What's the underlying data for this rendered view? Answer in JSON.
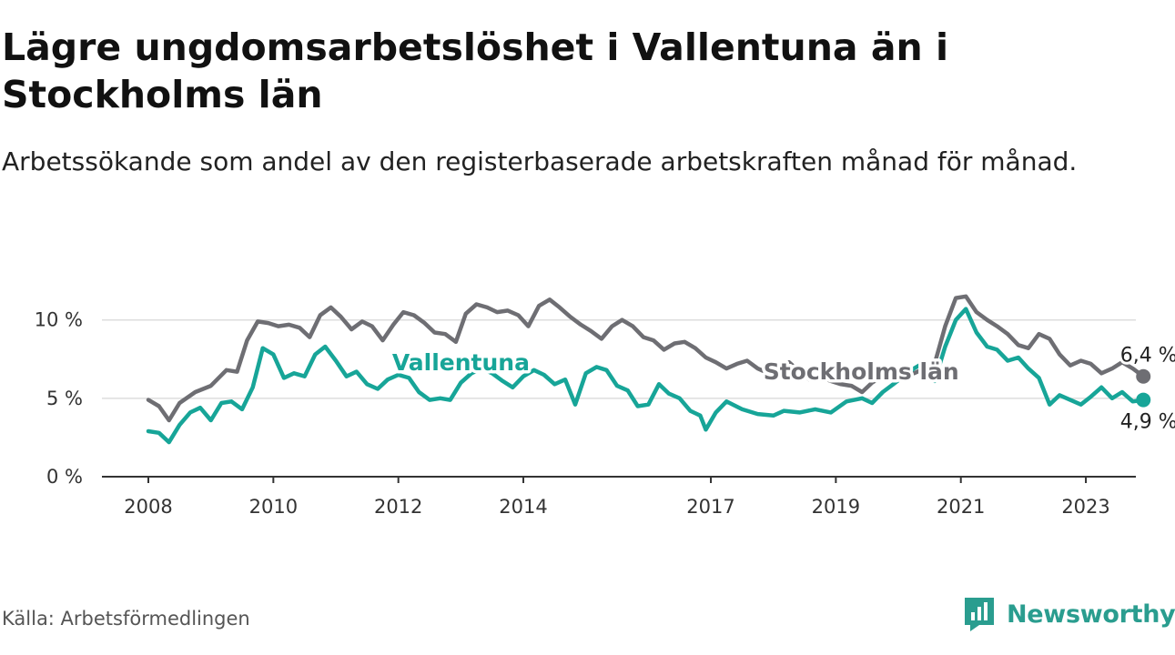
{
  "title": "Lägre ungdomsarbetslöshet i Vallentuna än i Stockholms län",
  "subtitle": "Arbetssökande som andel av den registerbaserade arbetskraften månad för månad.",
  "source": "Källa: Arbetsförmedlingen",
  "brand": "Newsworthy",
  "colors": {
    "vallentuna": "#17a598",
    "stockholm": "#6e6e73",
    "axis": "#333333",
    "grid": "#dddddd",
    "brand": "#2a9d8f"
  },
  "chart_data": {
    "type": "line",
    "title": "Lägre ungdomsarbetslöshet i Vallentuna än i Stockholms län",
    "xlabel": "",
    "ylabel": "",
    "xlim": [
      2007.92,
      2024.0
    ],
    "ylim": [
      0,
      13
    ],
    "x_ticks": [
      2008,
      2010,
      2012,
      2014,
      2017,
      2019,
      2021,
      2023
    ],
    "x_tick_labels": [
      "2008",
      "2010",
      "2012",
      "2014",
      "2017",
      "2019",
      "2021",
      "2023"
    ],
    "y_ticks": [
      0,
      5,
      10
    ],
    "y_tick_labels": [
      "0 %",
      "5 %",
      "10 %"
    ],
    "grid": true,
    "series": [
      {
        "name": "Stockholms län",
        "label": "Stockholms län",
        "color": "#6e6e73",
        "end_label": "6,4 %",
        "points": [
          [
            2008.0,
            4.9
          ],
          [
            2008.17,
            4.5
          ],
          [
            2008.33,
            3.6
          ],
          [
            2008.5,
            4.7
          ],
          [
            2008.75,
            5.4
          ],
          [
            2009.0,
            5.8
          ],
          [
            2009.25,
            6.8
          ],
          [
            2009.42,
            6.7
          ],
          [
            2009.58,
            8.7
          ],
          [
            2009.75,
            9.9
          ],
          [
            2009.92,
            9.8
          ],
          [
            2010.08,
            9.6
          ],
          [
            2010.25,
            9.7
          ],
          [
            2010.42,
            9.5
          ],
          [
            2010.58,
            8.9
          ],
          [
            2010.75,
            10.3
          ],
          [
            2010.92,
            10.8
          ],
          [
            2011.08,
            10.2
          ],
          [
            2011.25,
            9.4
          ],
          [
            2011.42,
            9.9
          ],
          [
            2011.58,
            9.6
          ],
          [
            2011.75,
            8.7
          ],
          [
            2011.92,
            9.7
          ],
          [
            2012.08,
            10.5
          ],
          [
            2012.25,
            10.3
          ],
          [
            2012.42,
            9.8
          ],
          [
            2012.58,
            9.2
          ],
          [
            2012.75,
            9.1
          ],
          [
            2012.92,
            8.6
          ],
          [
            2013.08,
            10.4
          ],
          [
            2013.25,
            11.0
          ],
          [
            2013.42,
            10.8
          ],
          [
            2013.58,
            10.5
          ],
          [
            2013.75,
            10.6
          ],
          [
            2013.92,
            10.3
          ],
          [
            2014.08,
            9.6
          ],
          [
            2014.25,
            10.9
          ],
          [
            2014.42,
            11.3
          ],
          [
            2014.58,
            10.8
          ],
          [
            2014.75,
            10.2
          ],
          [
            2014.92,
            9.7
          ],
          [
            2015.08,
            9.3
          ],
          [
            2015.25,
            8.8
          ],
          [
            2015.42,
            9.6
          ],
          [
            2015.58,
            10.0
          ],
          [
            2015.75,
            9.6
          ],
          [
            2015.92,
            8.9
          ],
          [
            2016.08,
            8.7
          ],
          [
            2016.25,
            8.1
          ],
          [
            2016.42,
            8.5
          ],
          [
            2016.58,
            8.6
          ],
          [
            2016.75,
            8.2
          ],
          [
            2016.92,
            7.6
          ],
          [
            2017.08,
            7.3
          ],
          [
            2017.25,
            6.9
          ],
          [
            2017.42,
            7.2
          ],
          [
            2017.58,
            7.4
          ],
          [
            2017.75,
            6.9
          ],
          [
            2017.92,
            6.6
          ],
          [
            2018.08,
            6.8
          ],
          [
            2018.25,
            7.3
          ],
          [
            2018.42,
            6.7
          ],
          [
            2018.58,
            6.2
          ],
          [
            2018.75,
            6.4
          ],
          [
            2018.92,
            6.1
          ],
          [
            2019.08,
            5.9
          ],
          [
            2019.25,
            5.8
          ],
          [
            2019.42,
            5.4
          ],
          [
            2019.58,
            6.0
          ],
          [
            2019.75,
            6.4
          ],
          [
            2019.92,
            6.7
          ],
          [
            2020.08,
            6.8
          ],
          [
            2020.25,
            6.6
          ],
          [
            2020.42,
            6.9
          ],
          [
            2020.58,
            7.2
          ],
          [
            2020.75,
            9.6
          ],
          [
            2020.92,
            11.4
          ],
          [
            2021.08,
            11.5
          ],
          [
            2021.25,
            10.5
          ],
          [
            2021.42,
            10.0
          ],
          [
            2021.58,
            9.6
          ],
          [
            2021.75,
            9.1
          ],
          [
            2021.92,
            8.4
          ],
          [
            2022.08,
            8.2
          ],
          [
            2022.25,
            9.1
          ],
          [
            2022.42,
            8.8
          ],
          [
            2022.58,
            7.8
          ],
          [
            2022.75,
            7.1
          ],
          [
            2022.92,
            7.4
          ],
          [
            2023.08,
            7.2
          ],
          [
            2023.25,
            6.6
          ],
          [
            2023.42,
            6.9
          ],
          [
            2023.58,
            7.3
          ],
          [
            2023.75,
            6.9
          ],
          [
            2023.92,
            6.4
          ]
        ]
      },
      {
        "name": "Vallentuna",
        "label": "Vallentuna",
        "color": "#17a598",
        "end_label": "4,9 %",
        "points": [
          [
            2008.0,
            2.9
          ],
          [
            2008.17,
            2.8
          ],
          [
            2008.33,
            2.2
          ],
          [
            2008.5,
            3.3
          ],
          [
            2008.67,
            4.1
          ],
          [
            2008.83,
            4.4
          ],
          [
            2009.0,
            3.6
          ],
          [
            2009.17,
            4.7
          ],
          [
            2009.33,
            4.8
          ],
          [
            2009.5,
            4.3
          ],
          [
            2009.67,
            5.7
          ],
          [
            2009.83,
            8.2
          ],
          [
            2010.0,
            7.8
          ],
          [
            2010.17,
            6.3
          ],
          [
            2010.33,
            6.6
          ],
          [
            2010.5,
            6.4
          ],
          [
            2010.67,
            7.8
          ],
          [
            2010.83,
            8.3
          ],
          [
            2011.0,
            7.4
          ],
          [
            2011.17,
            6.4
          ],
          [
            2011.33,
            6.7
          ],
          [
            2011.5,
            5.9
          ],
          [
            2011.67,
            5.6
          ],
          [
            2011.83,
            6.2
          ],
          [
            2012.0,
            6.5
          ],
          [
            2012.17,
            6.3
          ],
          [
            2012.33,
            5.4
          ],
          [
            2012.5,
            4.9
          ],
          [
            2012.67,
            5.0
          ],
          [
            2012.83,
            4.9
          ],
          [
            2013.0,
            6.0
          ],
          [
            2013.17,
            6.6
          ],
          [
            2013.33,
            6.9
          ],
          [
            2013.5,
            6.6
          ],
          [
            2013.67,
            6.1
          ],
          [
            2013.83,
            5.7
          ],
          [
            2014.0,
            6.4
          ],
          [
            2014.17,
            6.8
          ],
          [
            2014.33,
            6.5
          ],
          [
            2014.5,
            5.9
          ],
          [
            2014.67,
            6.2
          ],
          [
            2014.83,
            4.6
          ],
          [
            2015.0,
            6.6
          ],
          [
            2015.17,
            7.0
          ],
          [
            2015.33,
            6.8
          ],
          [
            2015.5,
            5.8
          ],
          [
            2015.67,
            5.5
          ],
          [
            2015.83,
            4.5
          ],
          [
            2016.0,
            4.6
          ],
          [
            2016.17,
            5.9
          ],
          [
            2016.33,
            5.3
          ],
          [
            2016.5,
            5.0
          ],
          [
            2016.67,
            4.2
          ],
          [
            2016.83,
            3.9
          ],
          [
            2016.92,
            3.0
          ],
          [
            2017.08,
            4.1
          ],
          [
            2017.25,
            4.8
          ],
          [
            2017.5,
            4.3
          ],
          [
            2017.75,
            4.0
          ],
          [
            2018.0,
            3.9
          ],
          [
            2018.17,
            4.2
          ],
          [
            2018.42,
            4.1
          ],
          [
            2018.67,
            4.3
          ],
          [
            2018.92,
            4.1
          ],
          [
            2019.17,
            4.8
          ],
          [
            2019.42,
            5.0
          ],
          [
            2019.58,
            4.7
          ],
          [
            2019.75,
            5.4
          ],
          [
            2019.92,
            5.9
          ],
          [
            2020.08,
            6.4
          ],
          [
            2020.25,
            6.9
          ],
          [
            2020.42,
            7.3
          ],
          [
            2020.58,
            6.1
          ],
          [
            2020.75,
            8.3
          ],
          [
            2020.92,
            10.0
          ],
          [
            2021.08,
            10.7
          ],
          [
            2021.25,
            9.2
          ],
          [
            2021.42,
            8.3
          ],
          [
            2021.58,
            8.1
          ],
          [
            2021.75,
            7.4
          ],
          [
            2021.92,
            7.6
          ],
          [
            2022.08,
            6.9
          ],
          [
            2022.25,
            6.3
          ],
          [
            2022.42,
            4.6
          ],
          [
            2022.58,
            5.2
          ],
          [
            2022.75,
            4.9
          ],
          [
            2022.92,
            4.6
          ],
          [
            2023.08,
            5.1
          ],
          [
            2023.25,
            5.7
          ],
          [
            2023.42,
            5.0
          ],
          [
            2023.58,
            5.4
          ],
          [
            2023.75,
            4.8
          ],
          [
            2023.92,
            4.9
          ]
        ]
      }
    ]
  }
}
